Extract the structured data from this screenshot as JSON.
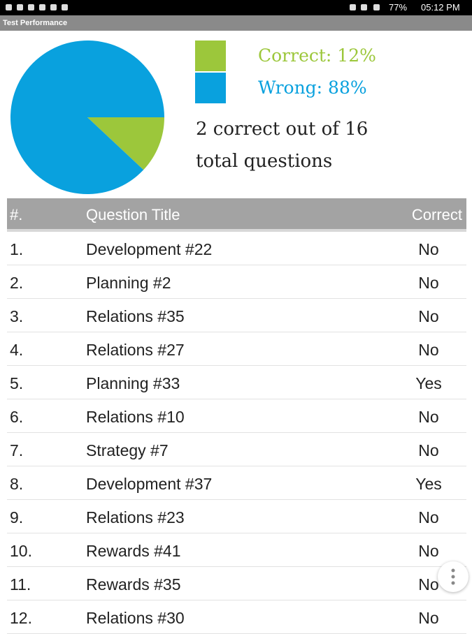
{
  "status_bar": {
    "battery": "77%",
    "time": "05:12 PM"
  },
  "app_bar": {
    "title": "Test Performance"
  },
  "chart_data": {
    "type": "pie",
    "categories": [
      "Correct: 12%",
      "Wrong: 88%"
    ],
    "values": [
      12,
      88
    ],
    "colors": [
      "#9cc73b",
      "#09a1de"
    ]
  },
  "summary": "2 correct out of 16 total questions",
  "table": {
    "header": [
      "#.",
      "Question Title",
      "Correct"
    ],
    "rows": [
      [
        "1.",
        "Development #22",
        "No"
      ],
      [
        "2.",
        "Planning #2",
        "No"
      ],
      [
        "3.",
        "Relations #35",
        "No"
      ],
      [
        "4.",
        "Relations #27",
        "No"
      ],
      [
        "5.",
        "Planning #33",
        "Yes"
      ],
      [
        "6.",
        "Relations #10",
        "No"
      ],
      [
        "7.",
        "Strategy #7",
        "No"
      ],
      [
        "8.",
        "Development #37",
        "Yes"
      ],
      [
        "9.",
        "Relations #23",
        "No"
      ],
      [
        "10.",
        "Rewards #41",
        "No"
      ],
      [
        "11.",
        "Rewards #35",
        "No"
      ],
      [
        "12.",
        "Relations #30",
        "No"
      ]
    ]
  }
}
